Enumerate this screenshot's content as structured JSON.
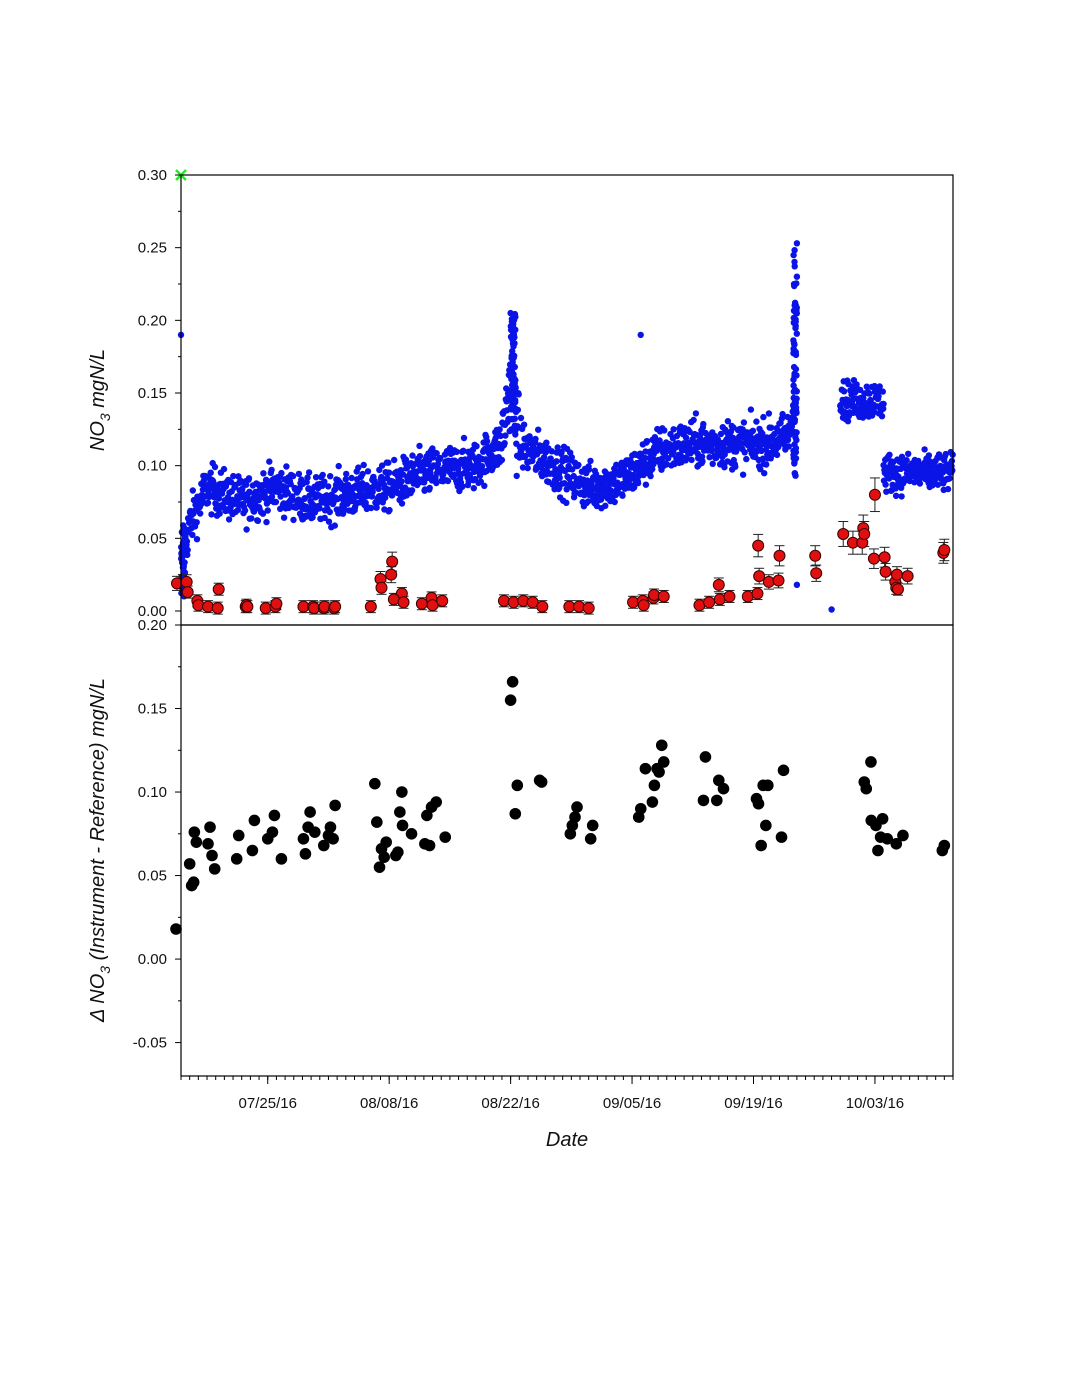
{
  "chart_data": [
    {
      "type": "scatter",
      "panel": "top",
      "ylabel": "NO3 mgN/L",
      "ylabel_parts": {
        "base": "NO",
        "sub": "3",
        "rest": " mgN/L"
      },
      "ylim": [
        0.0,
        0.3
      ],
      "yticks": [
        "0.00",
        "0.05",
        "0.10",
        "0.15",
        "0.20",
        "0.25",
        "0.30"
      ],
      "xlim": [
        "2016-07-15",
        "2016-10-12"
      ],
      "grid": false,
      "colors": {
        "instrument": "#0a14e6",
        "reference": "#e01010",
        "marker": "#22ee22"
      },
      "series": [
        {
          "kind": "dense-scatter",
          "color": "#0a14e6",
          "baseline_trend": [
            [
              "2016-07-15",
              0.03
            ],
            [
              "2016-07-16",
              0.06
            ],
            [
              "2016-07-18",
              0.085
            ],
            [
              "2016-07-22",
              0.075
            ],
            [
              "2016-07-26",
              0.085
            ],
            [
              "2016-07-30",
              0.075
            ],
            [
              "2016-08-03",
              0.08
            ],
            [
              "2016-08-08",
              0.085
            ],
            [
              "2016-08-12",
              0.095
            ],
            [
              "2016-08-18",
              0.1
            ],
            [
              "2016-08-21",
              0.115
            ],
            [
              "2016-08-22",
              0.16
            ],
            [
              "2016-08-23",
              0.115
            ],
            [
              "2016-08-27",
              0.1
            ],
            [
              "2016-08-31",
              0.085
            ],
            [
              "2016-09-04",
              0.09
            ],
            [
              "2016-09-08",
              0.11
            ],
            [
              "2016-09-12",
              0.115
            ],
            [
              "2016-09-16",
              0.115
            ],
            [
              "2016-09-20",
              0.115
            ],
            [
              "2016-09-23",
              0.12
            ],
            [
              "2016-09-24",
              0.15
            ]
          ],
          "segments": [
            [
              "2016-09-29",
              "2016-10-04",
              0.145
            ],
            [
              "2016-10-04",
              "2016-10-12",
              0.095
            ]
          ],
          "outliers": [
            [
              "2016-07-15",
              0.19
            ],
            [
              "2016-09-06",
              0.19
            ],
            [
              "2016-09-24",
              0.018
            ],
            [
              "2016-09-28",
              0.001
            ],
            [
              "2016-09-24",
              0.253
            ],
            [
              "2016-08-22",
              0.205
            ],
            [
              "2016-09-24",
              0.23
            ]
          ]
        },
        {
          "kind": "reference-with-errorbars",
          "color": "#e01010",
          "points": [
            [
              "2016-07-15",
              0.019
            ],
            [
              "2016-07-16",
              0.02
            ],
            [
              "2016-07-16",
              0.013
            ],
            [
              "2016-07-17",
              0.007
            ],
            [
              "2016-07-17",
              0.004
            ],
            [
              "2016-07-18",
              0.003
            ],
            [
              "2016-07-19",
              0.002
            ],
            [
              "2016-07-19",
              0.015
            ],
            [
              "2016-07-22",
              0.003
            ],
            [
              "2016-07-23",
              0.004
            ],
            [
              "2016-07-23",
              0.003
            ],
            [
              "2016-07-25",
              0.002
            ],
            [
              "2016-07-26",
              0.003
            ],
            [
              "2016-07-26",
              0.005
            ],
            [
              "2016-07-29",
              0.003
            ],
            [
              "2016-07-30",
              0.003
            ],
            [
              "2016-07-30",
              0.002
            ],
            [
              "2016-07-31",
              0.002
            ],
            [
              "2016-08-01",
              0.003
            ],
            [
              "2016-08-02",
              0.002
            ],
            [
              "2016-08-02",
              0.003
            ],
            [
              "2016-08-06",
              0.003
            ],
            [
              "2016-08-07",
              0.022
            ],
            [
              "2016-08-07",
              0.016
            ],
            [
              "2016-08-08",
              0.025
            ],
            [
              "2016-08-08",
              0.034
            ],
            [
              "2016-08-09",
              0.012
            ],
            [
              "2016-08-09",
              0.008
            ],
            [
              "2016-08-10",
              0.006
            ],
            [
              "2016-08-12",
              0.005
            ],
            [
              "2016-08-13",
              0.009
            ],
            [
              "2016-08-13",
              0.004
            ],
            [
              "2016-08-14",
              0.007
            ],
            [
              "2016-08-21",
              0.007
            ],
            [
              "2016-08-22",
              0.006
            ],
            [
              "2016-08-23",
              0.007
            ],
            [
              "2016-08-25",
              0.006
            ],
            [
              "2016-08-26",
              0.003
            ],
            [
              "2016-08-29",
              0.003
            ],
            [
              "2016-08-30",
              0.003
            ],
            [
              "2016-08-31",
              0.002
            ],
            [
              "2016-09-05",
              0.006
            ],
            [
              "2016-09-06",
              0.007
            ],
            [
              "2016-09-06",
              0.004
            ],
            [
              "2016-09-07",
              0.009
            ],
            [
              "2016-09-08",
              0.011
            ],
            [
              "2016-09-09",
              0.01
            ],
            [
              "2016-09-13",
              0.004
            ],
            [
              "2016-09-14",
              0.006
            ],
            [
              "2016-09-15",
              0.018
            ],
            [
              "2016-09-15",
              0.008
            ],
            [
              "2016-09-16",
              0.01
            ],
            [
              "2016-09-18",
              0.01
            ],
            [
              "2016-09-19",
              0.012
            ],
            [
              "2016-09-20",
              0.045
            ],
            [
              "2016-09-20",
              0.024
            ],
            [
              "2016-09-21",
              0.02
            ],
            [
              "2016-09-22",
              0.021
            ],
            [
              "2016-09-22",
              0.038
            ],
            [
              "2016-09-26",
              0.038
            ],
            [
              "2016-09-26",
              0.026
            ],
            [
              "2016-09-29",
              0.053
            ],
            [
              "2016-09-30",
              0.047
            ],
            [
              "2016-10-02",
              0.047
            ],
            [
              "2016-10-02",
              0.057
            ],
            [
              "2016-10-02",
              0.053
            ],
            [
              "2016-10-03",
              0.036
            ],
            [
              "2016-10-03",
              0.08
            ],
            [
              "2016-10-04",
              0.037
            ],
            [
              "2016-10-04",
              0.027
            ],
            [
              "2016-10-05",
              0.02
            ],
            [
              "2016-10-05",
              0.016
            ],
            [
              "2016-10-06",
              0.025
            ],
            [
              "2016-10-06",
              0.015
            ],
            [
              "2016-10-07",
              0.024
            ],
            [
              "2016-10-11",
              0.04
            ],
            [
              "2016-10-11",
              0.042
            ]
          ]
        }
      ],
      "markers": [
        {
          "x": "2016-07-15",
          "y": 0.3,
          "symbol": "x"
        }
      ]
    },
    {
      "type": "scatter",
      "panel": "bottom",
      "ylabel": "Δ NO3 (Instrument - Reference) mgN/L",
      "ylabel_parts": {
        "base": "Δ NO",
        "sub": "3",
        "rest": " (Instrument - Reference) mgN/L"
      },
      "xlabel": "Date",
      "ylim": [
        -0.07,
        0.2
      ],
      "yticks": [
        "-0.05",
        "0.00",
        "0.05",
        "0.10",
        "0.15",
        "0.20"
      ],
      "xlim": [
        "2016-07-15",
        "2016-10-12"
      ],
      "xticks": [
        {
          "date": "2016-07-25",
          "label": "07/25/16"
        },
        {
          "date": "2016-08-08",
          "label": "08/08/16"
        },
        {
          "date": "2016-08-22",
          "label": "08/22/16"
        },
        {
          "date": "2016-09-05",
          "label": "09/05/16"
        },
        {
          "date": "2016-09-19",
          "label": "09/19/16"
        },
        {
          "date": "2016-10-03",
          "label": "10/03/16"
        }
      ],
      "grid": false,
      "series": [
        {
          "color": "#000000",
          "points": [
            [
              "2016-07-15",
              0.018
            ],
            [
              "2016-07-16",
              0.046
            ],
            [
              "2016-07-16",
              0.044
            ],
            [
              "2016-07-16",
              0.057
            ],
            [
              "2016-07-17",
              0.07
            ],
            [
              "2016-07-17",
              0.076
            ],
            [
              "2016-07-18",
              0.062
            ],
            [
              "2016-07-18",
              0.079
            ],
            [
              "2016-07-18",
              0.069
            ],
            [
              "2016-07-19",
              0.054
            ],
            [
              "2016-07-22",
              0.074
            ],
            [
              "2016-07-22",
              0.06
            ],
            [
              "2016-07-23",
              0.083
            ],
            [
              "2016-07-23",
              0.065
            ],
            [
              "2016-07-25",
              0.072
            ],
            [
              "2016-07-26",
              0.086
            ],
            [
              "2016-07-26",
              0.076
            ],
            [
              "2016-07-26",
              0.06
            ],
            [
              "2016-07-29",
              0.063
            ],
            [
              "2016-07-29",
              0.072
            ],
            [
              "2016-07-30",
              0.088
            ],
            [
              "2016-07-30",
              0.079
            ],
            [
              "2016-07-31",
              0.076
            ],
            [
              "2016-07-31",
              0.068
            ],
            [
              "2016-08-01",
              0.079
            ],
            [
              "2016-08-01",
              0.074
            ],
            [
              "2016-08-02",
              0.092
            ],
            [
              "2016-08-02",
              0.072
            ],
            [
              "2016-08-06",
              0.082
            ],
            [
              "2016-08-06",
              0.105
            ],
            [
              "2016-08-07",
              0.066
            ],
            [
              "2016-08-07",
              0.055
            ],
            [
              "2016-08-08",
              0.07
            ],
            [
              "2016-08-08",
              0.061
            ],
            [
              "2016-08-09",
              0.1
            ],
            [
              "2016-08-09",
              0.088
            ],
            [
              "2016-08-09",
              0.064
            ],
            [
              "2016-08-09",
              0.062
            ],
            [
              "2016-08-10",
              0.08
            ],
            [
              "2016-08-10",
              0.075
            ],
            [
              "2016-08-12",
              0.086
            ],
            [
              "2016-08-12",
              0.069
            ],
            [
              "2016-08-13",
              0.091
            ],
            [
              "2016-08-13",
              0.068
            ],
            [
              "2016-08-14",
              0.094
            ],
            [
              "2016-08-14",
              0.073
            ],
            [
              "2016-08-22",
              0.166
            ],
            [
              "2016-08-22",
              0.155
            ],
            [
              "2016-08-23",
              0.104
            ],
            [
              "2016-08-23",
              0.087
            ],
            [
              "2016-08-25",
              0.106
            ],
            [
              "2016-08-25",
              0.107
            ],
            [
              "2016-08-29",
              0.08
            ],
            [
              "2016-08-29",
              0.075
            ],
            [
              "2016-08-30",
              0.091
            ],
            [
              "2016-08-30",
              0.085
            ],
            [
              "2016-08-31",
              0.08
            ],
            [
              "2016-08-31",
              0.072
            ],
            [
              "2016-09-06",
              0.09
            ],
            [
              "2016-09-06",
              0.085
            ],
            [
              "2016-09-07",
              0.114
            ],
            [
              "2016-09-07",
              0.104
            ],
            [
              "2016-09-07",
              0.094
            ],
            [
              "2016-09-08",
              0.112
            ],
            [
              "2016-09-08",
              0.114
            ],
            [
              "2016-09-09",
              0.118
            ],
            [
              "2016-09-09",
              0.128
            ],
            [
              "2016-09-13",
              0.121
            ],
            [
              "2016-09-13",
              0.095
            ],
            [
              "2016-09-15",
              0.107
            ],
            [
              "2016-09-15",
              0.095
            ],
            [
              "2016-09-16",
              0.102
            ],
            [
              "2016-09-19",
              0.093
            ],
            [
              "2016-09-19",
              0.096
            ],
            [
              "2016-09-20",
              0.104
            ],
            [
              "2016-09-20",
              0.068
            ],
            [
              "2016-09-21",
              0.104
            ],
            [
              "2016-09-21",
              0.08
            ],
            [
              "2016-09-22",
              0.113
            ],
            [
              "2016-09-22",
              0.073
            ],
            [
              "2016-10-02",
              0.102
            ],
            [
              "2016-10-02",
              0.106
            ],
            [
              "2016-10-03",
              0.118
            ],
            [
              "2016-10-02",
              0.083
            ],
            [
              "2016-10-03",
              0.065
            ],
            [
              "2016-10-03",
              0.08
            ],
            [
              "2016-10-04",
              0.084
            ],
            [
              "2016-10-04",
              0.073
            ],
            [
              "2016-10-05",
              0.072
            ],
            [
              "2016-10-05",
              0.069
            ],
            [
              "2016-10-06",
              0.074
            ],
            [
              "2016-10-11",
              0.068
            ],
            [
              "2016-10-11",
              0.065
            ]
          ]
        }
      ]
    }
  ]
}
